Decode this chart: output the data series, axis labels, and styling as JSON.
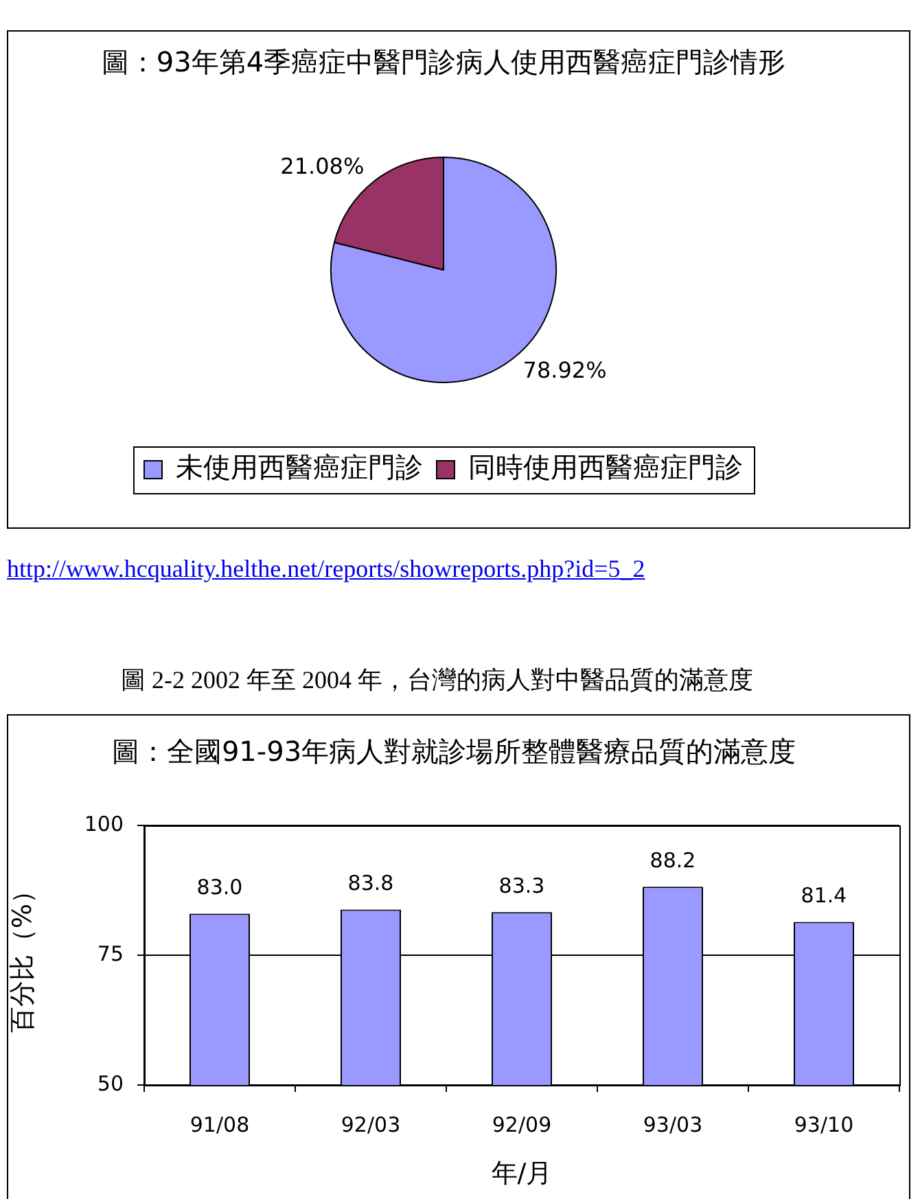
{
  "chart_data": [
    {
      "type": "pie",
      "title": "圖：93年第4季癌症中醫門診病人使用西醫癌症門診情形",
      "categories": [
        "未使用西醫癌症門診",
        "同時使用西醫癌症門診"
      ],
      "values": [
        78.92,
        21.08
      ],
      "colors": [
        "#9999ff",
        "#993366"
      ],
      "value_labels": [
        "78.92%",
        "21.08%"
      ],
      "legend": "bottom",
      "annotations": [
        "http://www.hcquality.helthe.net/reports/showreports.php?id=5_2"
      ]
    },
    {
      "type": "bar",
      "title": "圖：全國91-93年病人對就診場所整體醫療品質的滿意度",
      "categories": [
        "91/08",
        "92/03",
        "92/09",
        "93/03",
        "93/10"
      ],
      "values": [
        83.0,
        83.8,
        83.3,
        88.2,
        81.4
      ],
      "color": "#9999ff",
      "value_labels": [
        "83.0",
        "83.8",
        "83.3",
        "88.2",
        "81.4"
      ],
      "xlabel": "年/月",
      "ylabel": "百分比（%）",
      "ylim": [
        50,
        100
      ],
      "yticks": [
        50,
        75,
        100
      ],
      "grid": "y",
      "annotations": [
        "圖 2-2 2002 年至 2004 年，台灣的病人對中醫品質的滿意度"
      ]
    }
  ]
}
